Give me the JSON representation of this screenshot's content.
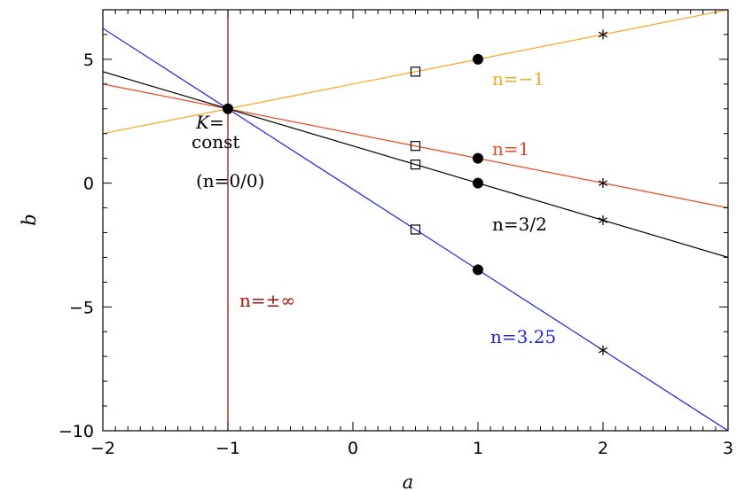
{
  "chart_data": {
    "type": "line",
    "xlabel": "a",
    "ylabel": "b",
    "xlim": [
      -2,
      3
    ],
    "ylim": [
      -10,
      7
    ],
    "xticks": [
      -2,
      -1,
      0,
      1,
      2,
      3
    ],
    "xtick_labels": [
      "−2",
      "−1",
      "0",
      "1",
      "2",
      "3"
    ],
    "yticks": [
      -10,
      -5,
      0,
      5
    ],
    "ytick_labels": [
      "−10",
      "−5",
      "0",
      "5"
    ],
    "grid": false,
    "series": [
      {
        "name": "n=−1",
        "color": "#f5a623",
        "x": [
          -2,
          3
        ],
        "y": [
          2,
          7
        ],
        "squares": [
          [
            0.5,
            4.5
          ]
        ],
        "dots": [
          [
            1,
            5
          ]
        ],
        "stars": [
          [
            2,
            6
          ]
        ]
      },
      {
        "name": "n=1",
        "color": "#ee4422",
        "x": [
          -2,
          3
        ],
        "y": [
          4,
          -1
        ],
        "squares": [
          [
            0.5,
            1.5
          ]
        ],
        "dots": [
          [
            1,
            1
          ]
        ],
        "stars": [
          [
            2,
            0
          ]
        ]
      },
      {
        "name": "n=3/2",
        "color": "#000000",
        "x": [
          -2,
          3
        ],
        "y": [
          4.5,
          -3
        ],
        "squares": [
          [
            0.5,
            0.75
          ]
        ],
        "dots": [
          [
            1,
            0
          ]
        ],
        "stars": [
          [
            2,
            -1.5
          ]
        ]
      },
      {
        "name": "n=3.25",
        "color": "#2222dd",
        "x": [
          -2,
          3
        ],
        "y": [
          6.25,
          -10
        ],
        "squares": [
          [
            0.5,
            -1.875
          ]
        ],
        "dots": [
          [
            1,
            -3.5
          ]
        ],
        "stars": [
          [
            2,
            -6.75
          ]
        ]
      }
    ],
    "vertical_line": {
      "x": -1,
      "color": "#8b0000"
    },
    "common_point": {
      "x": -1,
      "y": 3
    },
    "annotations": {
      "k_const_line1": "K=",
      "k_const_line2": "const",
      "n00": "(n=0/0)",
      "n_inf": "n=±∞",
      "n_minus1": "n=−1",
      "n_1": "n=1",
      "n_3_2": "n=3/2",
      "n_3_25": "n=3.25"
    }
  }
}
